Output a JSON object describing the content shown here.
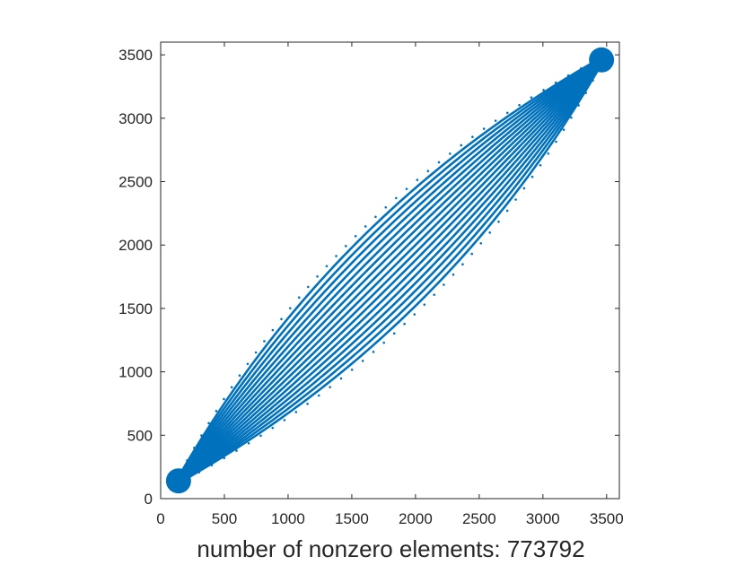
{
  "chart_data": {
    "type": "scatter",
    "subtype": "sparsity-pattern",
    "title": "",
    "xlabel": "number of nonzero elements: 773792",
    "ylabel": "",
    "nonzero_count": 773792,
    "matrix_size": 3600,
    "xlim": [
      0,
      3600
    ],
    "ylim": [
      3600,
      0
    ],
    "y_axis_direction": "reversed",
    "x_ticks": [
      0,
      500,
      1000,
      1500,
      2000,
      2500,
      3000,
      3500
    ],
    "x_tick_labels": [
      "0",
      "500",
      "1000",
      "1500",
      "2000",
      "2500",
      "3000",
      "3500"
    ],
    "y_ticks": [
      0,
      500,
      1000,
      1500,
      2000,
      2500,
      3000,
      3500
    ],
    "y_tick_labels": [
      "0",
      "500",
      "1000",
      "1500",
      "2000",
      "2500",
      "3000",
      "3500"
    ],
    "grid": false,
    "aspect": "equal",
    "marker_color": "#0072BD",
    "bands": {
      "count": 19,
      "offset_step": 30,
      "offset_unit": "index-units at the anti-diagonal point (1800, 1800)",
      "apex_near": [
        100,
        100
      ],
      "apex_far": [
        3500,
        3500
      ],
      "outermost_band_style": "dotted",
      "inner_band_style": "solid"
    }
  }
}
